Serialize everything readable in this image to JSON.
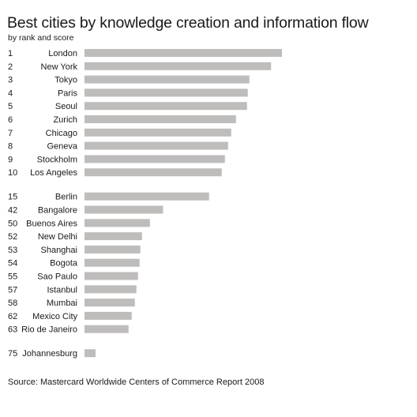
{
  "chart_data": {
    "type": "bar",
    "orientation": "horizontal",
    "title": "Best cities by knowledge creation and information flow",
    "subtitle": "by rank and score",
    "source": "Source: Mastercard Worldwide Centers of Commerce Report 2008",
    "bar_color": "#bfbcbc",
    "grid": false,
    "groups": [
      {
        "rows": [
          {
            "rank": "1",
            "city": "London",
            "value": 100
          },
          {
            "rank": "2",
            "city": "New York",
            "value": 94.5
          },
          {
            "rank": "3",
            "city": "Tokyo",
            "value": 83.5
          },
          {
            "rank": "4",
            "city": "Paris",
            "value": 82.7
          },
          {
            "rank": "5",
            "city": "Seoul",
            "value": 82.3
          },
          {
            "rank": "6",
            "city": "Zurich",
            "value": 76.7
          },
          {
            "rank": "7",
            "city": "Chicago",
            "value": 74.3
          },
          {
            "rank": "8",
            "city": "Geneva",
            "value": 72.7
          },
          {
            "rank": "9",
            "city": "Stockholm",
            "value": 71.1
          },
          {
            "rank": "10",
            "city": "Los Angeles",
            "value": 69.5
          }
        ]
      },
      {
        "rows": [
          {
            "rank": "15",
            "city": "Berlin",
            "value": 63.1
          },
          {
            "rank": "42",
            "city": "Bangalore",
            "value": 39.8
          },
          {
            "rank": "50",
            "city": "Buenos Aires",
            "value": 33.1
          },
          {
            "rank": "52",
            "city": "New Delhi",
            "value": 29.1
          },
          {
            "rank": "53",
            "city": "Shanghai",
            "value": 28.3
          },
          {
            "rank": "54",
            "city": "Bogota",
            "value": 27.9
          },
          {
            "rank": "55",
            "city": "Sao Paulo",
            "value": 27.1
          },
          {
            "rank": "57",
            "city": "Istanbul",
            "value": 26.3
          },
          {
            "rank": "58",
            "city": "Mumbai",
            "value": 25.5
          },
          {
            "rank": "62",
            "city": "Mexico City",
            "value": 23.9
          },
          {
            "rank": "63",
            "city": "Rio de Janeiro",
            "value": 22.3
          }
        ]
      },
      {
        "rows": [
          {
            "rank": "75",
            "city": "Johannesburg",
            "value": 5.6
          }
        ]
      }
    ]
  }
}
